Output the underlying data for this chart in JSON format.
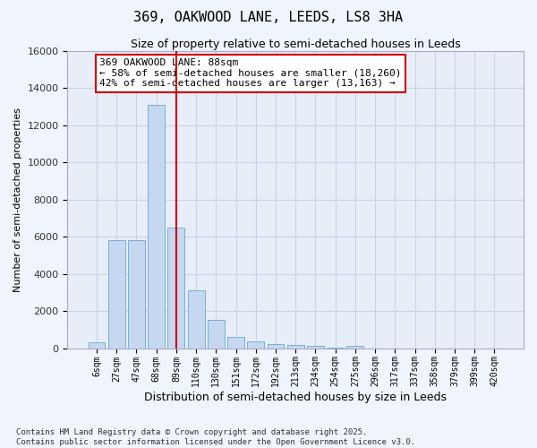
{
  "title": "369, OAKWOOD LANE, LEEDS, LS8 3HA",
  "subtitle": "Size of property relative to semi-detached houses in Leeds",
  "xlabel": "Distribution of semi-detached houses by size in Leeds",
  "ylabel": "Number of semi-detached properties",
  "categories": [
    "6sqm",
    "27sqm",
    "47sqm",
    "68sqm",
    "89sqm",
    "110sqm",
    "130sqm",
    "151sqm",
    "172sqm",
    "192sqm",
    "213sqm",
    "234sqm",
    "254sqm",
    "275sqm",
    "296sqm",
    "317sqm",
    "337sqm",
    "358sqm",
    "379sqm",
    "399sqm",
    "420sqm"
  ],
  "values": [
    300,
    5800,
    5800,
    13100,
    6500,
    3100,
    1500,
    600,
    350,
    200,
    150,
    100,
    30,
    100,
    0,
    0,
    0,
    0,
    0,
    0,
    0
  ],
  "bar_color": "#c5d8f0",
  "bar_edge_color": "#7aafd4",
  "vline_index": 4,
  "annotation_text": "369 OAKWOOD LANE: 88sqm\n← 58% of semi-detached houses are smaller (18,260)\n42% of semi-detached houses are larger (13,163) →",
  "annotation_box_color": "#ffffff",
  "annotation_box_edge": "#cc0000",
  "vline_color": "#cc0000",
  "footer": "Contains HM Land Registry data © Crown copyright and database right 2025.\nContains public sector information licensed under the Open Government Licence v3.0.",
  "ylim": [
    0,
    16000
  ],
  "yticks": [
    0,
    2000,
    4000,
    6000,
    8000,
    10000,
    12000,
    14000,
    16000
  ],
  "grid_color": "#c8d4e8",
  "background_color": "#f0f4fc",
  "plot_bg_color": "#e8eef8",
  "title_fontsize": 11,
  "subtitle_fontsize": 9,
  "ylabel_fontsize": 8,
  "xlabel_fontsize": 9,
  "annot_fontsize": 8,
  "footer_fontsize": 6.5
}
